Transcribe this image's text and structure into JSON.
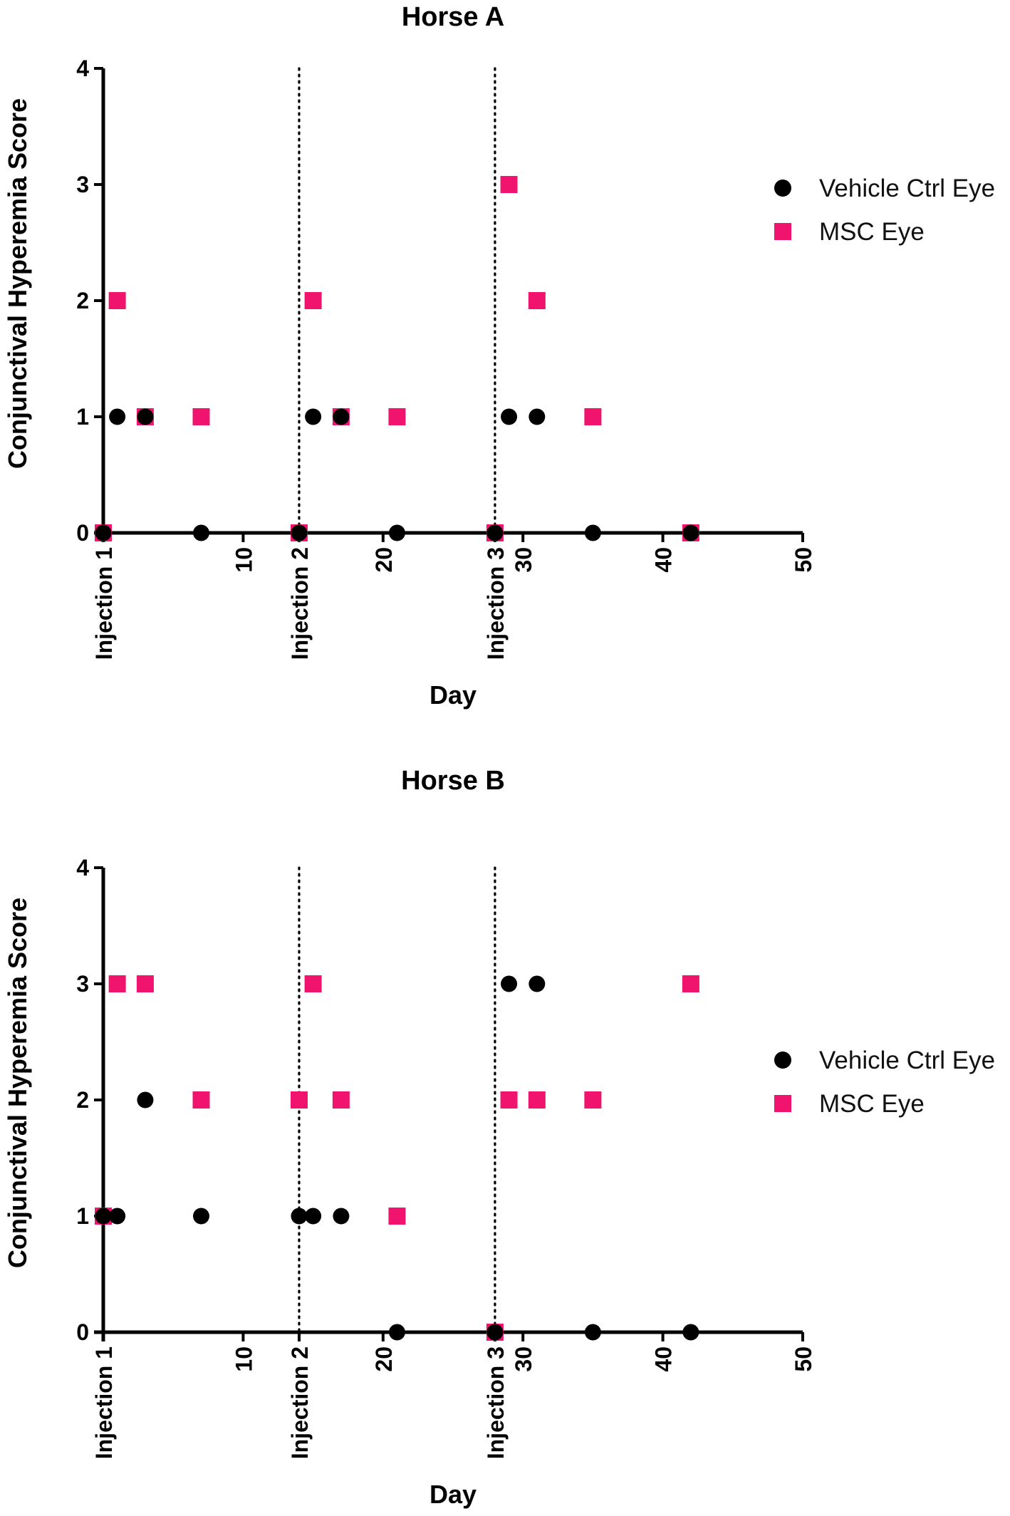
{
  "chart_data": [
    {
      "type": "scatter",
      "title": "Horse A",
      "xlabel": "Day",
      "ylabel": "Conjunctival Hyperemia Score",
      "xlim": [
        0,
        50
      ],
      "ylim": [
        0,
        4
      ],
      "y_ticks": [
        "0",
        "1",
        "2",
        "3",
        "4"
      ],
      "x_ticks": [
        {
          "value": 0,
          "label": "Injection 1"
        },
        {
          "value": 10,
          "label": "10"
        },
        {
          "value": 14,
          "label": "Injection 2"
        },
        {
          "value": 20,
          "label": "20"
        },
        {
          "value": 28,
          "label": "Injection 3"
        },
        {
          "value": 30,
          "label": "30"
        },
        {
          "value": 40,
          "label": "40"
        },
        {
          "value": 50,
          "label": "50"
        }
      ],
      "reference_lines_x": [
        14,
        28
      ],
      "legend": {
        "position": "right",
        "entries": [
          "Vehicle Ctrl Eye",
          "MSC Eye"
        ]
      },
      "series": [
        {
          "name": "Vehicle Ctrl Eye",
          "marker": "circle",
          "color": "#000000",
          "x": [
            0,
            1,
            3,
            7,
            14,
            15,
            17,
            21,
            28,
            29,
            31,
            35,
            42
          ],
          "y": [
            0,
            1,
            1,
            0,
            0,
            1,
            1,
            0,
            0,
            1,
            1,
            0,
            0
          ]
        },
        {
          "name": "MSC Eye",
          "marker": "square",
          "color": "#F0146E",
          "x": [
            0,
            1,
            3,
            7,
            14,
            15,
            17,
            21,
            28,
            29,
            31,
            35,
            42
          ],
          "y": [
            0,
            2,
            1,
            1,
            0,
            2,
            1,
            1,
            0,
            3,
            2,
            1,
            0
          ]
        }
      ]
    },
    {
      "type": "scatter",
      "title": "Horse B",
      "xlabel": "Day",
      "ylabel": "Conjunctival Hyperemia Score",
      "xlim": [
        0,
        50
      ],
      "ylim": [
        0,
        4
      ],
      "y_ticks": [
        "0",
        "1",
        "2",
        "3",
        "4"
      ],
      "x_ticks": [
        {
          "value": 0,
          "label": "Injection 1"
        },
        {
          "value": 10,
          "label": "10"
        },
        {
          "value": 14,
          "label": "Injection 2"
        },
        {
          "value": 20,
          "label": "20"
        },
        {
          "value": 28,
          "label": "Injection 3"
        },
        {
          "value": 30,
          "label": "30"
        },
        {
          "value": 40,
          "label": "40"
        },
        {
          "value": 50,
          "label": "50"
        }
      ],
      "reference_lines_x": [
        14,
        28
      ],
      "legend": {
        "position": "right",
        "entries": [
          "Vehicle Ctrl Eye",
          "MSC Eye"
        ]
      },
      "series": [
        {
          "name": "Vehicle Ctrl Eye",
          "marker": "circle",
          "color": "#000000",
          "x": [
            0,
            1,
            3,
            7,
            14,
            15,
            17,
            21,
            28,
            29,
            31,
            35,
            42
          ],
          "y": [
            1,
            1,
            2,
            1,
            1,
            1,
            1,
            0,
            0,
            3,
            3,
            0,
            0
          ]
        },
        {
          "name": "MSC Eye",
          "marker": "square",
          "color": "#F0146E",
          "x": [
            0,
            1,
            3,
            7,
            14,
            15,
            17,
            21,
            28,
            29,
            31,
            35,
            42
          ],
          "y": [
            1,
            3,
            3,
            2,
            2,
            3,
            2,
            1,
            0,
            2,
            2,
            2,
            3
          ]
        }
      ]
    }
  ]
}
